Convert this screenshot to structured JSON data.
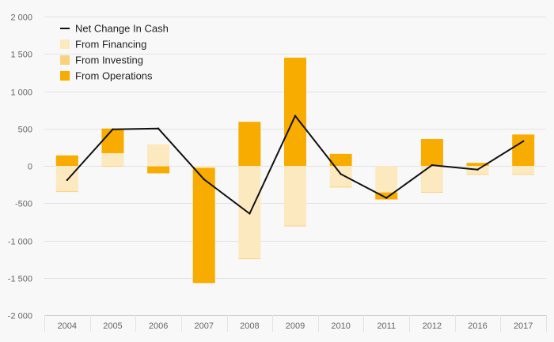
{
  "chart_data": {
    "type": "bar",
    "stacked": true,
    "categories": [
      "2004",
      "2005",
      "2006",
      "2007",
      "2008",
      "2009",
      "2010",
      "2011",
      "2012",
      "2016",
      "2017"
    ],
    "series": [
      {
        "name": "From Financing",
        "kind": "bar",
        "color": "#fde9c0",
        "values": [
          -340,
          170,
          290,
          -20,
          -1240,
          -800,
          -280,
          -350,
          -350,
          -110,
          -110
        ]
      },
      {
        "name": "From Investing",
        "kind": "bar",
        "color": "#fbd17e",
        "values": [
          -10,
          -10,
          -10,
          -10,
          -10,
          -10,
          -10,
          -10,
          -10,
          -10,
          -10
        ]
      },
      {
        "name": "From Operations",
        "kind": "bar",
        "color": "#f9ac00",
        "values": [
          140,
          330,
          -90,
          -1540,
          590,
          1450,
          160,
          -90,
          360,
          40,
          420
        ]
      },
      {
        "name": "Net Change In Cash",
        "kind": "line",
        "color": "#111111",
        "values": [
          -190,
          490,
          500,
          -180,
          -640,
          670,
          -110,
          -430,
          10,
          -50,
          330
        ]
      }
    ],
    "ylim": [
      -2000,
      2000
    ],
    "yticks": [
      2000,
      1500,
      1000,
      500,
      0,
      -500,
      -1000,
      -1500,
      -2000
    ],
    "ytick_labels": [
      "2 000",
      "1 500",
      "1 000",
      "500",
      "0",
      "-500",
      "-1 000",
      "-1 500",
      "-2 000"
    ],
    "legend_position": "top-left",
    "grid": true
  }
}
